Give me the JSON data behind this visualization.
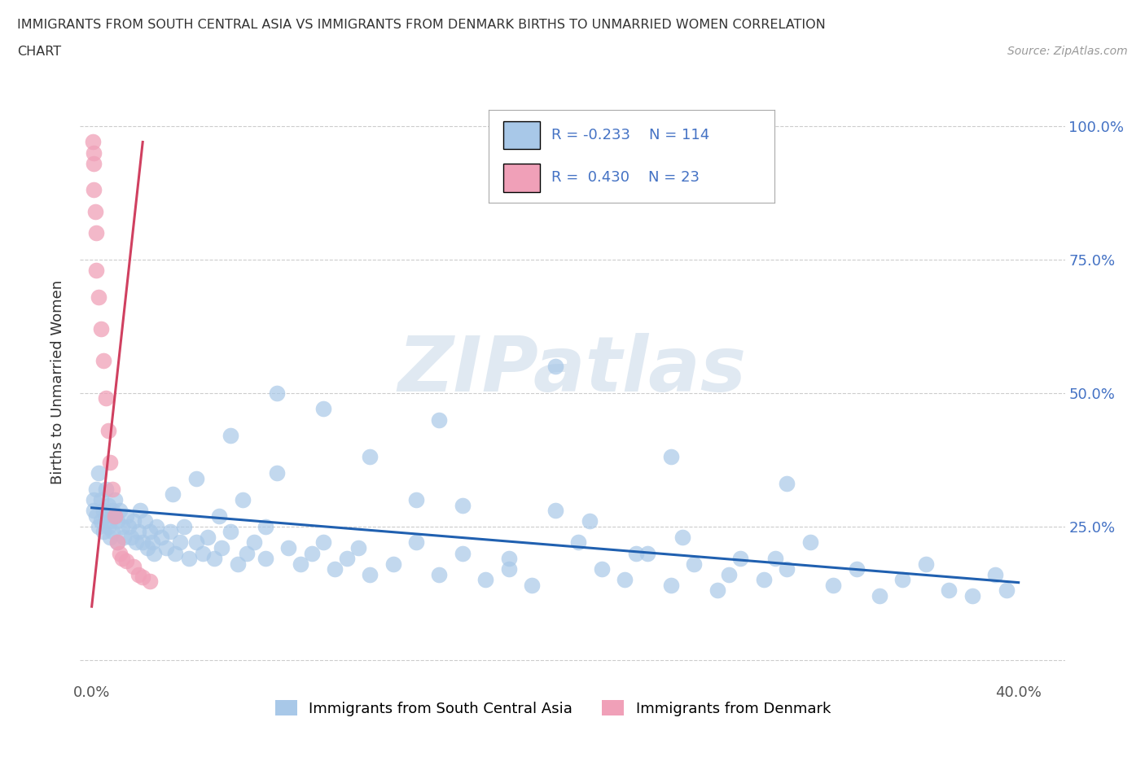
{
  "title_line1": "IMMIGRANTS FROM SOUTH CENTRAL ASIA VS IMMIGRANTS FROM DENMARK BIRTHS TO UNMARRIED WOMEN CORRELATION",
  "title_line2": "CHART",
  "source": "Source: ZipAtlas.com",
  "ylabel": "Births to Unmarried Women",
  "legend_label1": "Immigrants from South Central Asia",
  "legend_label2": "Immigrants from Denmark",
  "R1": -0.233,
  "N1": 114,
  "R2": 0.43,
  "N2": 23,
  "blue_color": "#a8c8e8",
  "pink_color": "#f0a0b8",
  "blue_line_color": "#2060b0",
  "pink_line_color": "#d04060",
  "watermark_text": "ZIPatlas",
  "watermark_color": "#c8d8e8",
  "x_min": 0.0,
  "x_max": 0.4,
  "y_min": 0.0,
  "y_max": 1.05,
  "blue_scatter_x": [
    0.001,
    0.001,
    0.002,
    0.002,
    0.003,
    0.003,
    0.004,
    0.004,
    0.005,
    0.005,
    0.006,
    0.006,
    0.007,
    0.007,
    0.008,
    0.008,
    0.009,
    0.009,
    0.01,
    0.01,
    0.011,
    0.011,
    0.012,
    0.013,
    0.014,
    0.015,
    0.016,
    0.017,
    0.018,
    0.019,
    0.02,
    0.021,
    0.022,
    0.023,
    0.024,
    0.025,
    0.026,
    0.027,
    0.028,
    0.03,
    0.032,
    0.034,
    0.036,
    0.038,
    0.04,
    0.042,
    0.045,
    0.048,
    0.05,
    0.053,
    0.056,
    0.06,
    0.063,
    0.067,
    0.07,
    0.075,
    0.08,
    0.085,
    0.09,
    0.095,
    0.1,
    0.105,
    0.11,
    0.115,
    0.12,
    0.13,
    0.14,
    0.15,
    0.16,
    0.17,
    0.18,
    0.19,
    0.2,
    0.21,
    0.22,
    0.23,
    0.24,
    0.25,
    0.26,
    0.27,
    0.28,
    0.29,
    0.3,
    0.31,
    0.32,
    0.33,
    0.34,
    0.35,
    0.36,
    0.37,
    0.38,
    0.39,
    0.395,
    0.15,
    0.2,
    0.25,
    0.3,
    0.06,
    0.08,
    0.1,
    0.12,
    0.14,
    0.035,
    0.045,
    0.055,
    0.065,
    0.075,
    0.16,
    0.18,
    0.215,
    0.235,
    0.255,
    0.275,
    0.295
  ],
  "blue_scatter_y": [
    0.3,
    0.28,
    0.32,
    0.27,
    0.35,
    0.25,
    0.3,
    0.26,
    0.28,
    0.24,
    0.27,
    0.32,
    0.25,
    0.29,
    0.26,
    0.23,
    0.28,
    0.24,
    0.27,
    0.3,
    0.26,
    0.22,
    0.28,
    0.25,
    0.23,
    0.27,
    0.25,
    0.23,
    0.26,
    0.22,
    0.24,
    0.28,
    0.22,
    0.26,
    0.21,
    0.24,
    0.22,
    0.2,
    0.25,
    0.23,
    0.21,
    0.24,
    0.2,
    0.22,
    0.25,
    0.19,
    0.22,
    0.2,
    0.23,
    0.19,
    0.21,
    0.24,
    0.18,
    0.2,
    0.22,
    0.19,
    0.35,
    0.21,
    0.18,
    0.2,
    0.22,
    0.17,
    0.19,
    0.21,
    0.16,
    0.18,
    0.22,
    0.16,
    0.2,
    0.15,
    0.19,
    0.14,
    0.28,
    0.22,
    0.17,
    0.15,
    0.2,
    0.14,
    0.18,
    0.13,
    0.19,
    0.15,
    0.17,
    0.22,
    0.14,
    0.17,
    0.12,
    0.15,
    0.18,
    0.13,
    0.12,
    0.16,
    0.13,
    0.45,
    0.55,
    0.38,
    0.33,
    0.42,
    0.5,
    0.47,
    0.38,
    0.3,
    0.31,
    0.34,
    0.27,
    0.3,
    0.25,
    0.29,
    0.17,
    0.26,
    0.2,
    0.23,
    0.16,
    0.19
  ],
  "pink_scatter_x": [
    0.0005,
    0.0008,
    0.001,
    0.001,
    0.0015,
    0.002,
    0.002,
    0.003,
    0.004,
    0.005,
    0.006,
    0.007,
    0.008,
    0.009,
    0.01,
    0.011,
    0.012,
    0.013,
    0.015,
    0.018,
    0.02,
    0.022,
    0.025
  ],
  "pink_scatter_y": [
    0.97,
    0.95,
    0.93,
    0.88,
    0.84,
    0.8,
    0.73,
    0.68,
    0.62,
    0.56,
    0.49,
    0.43,
    0.37,
    0.32,
    0.27,
    0.22,
    0.2,
    0.19,
    0.185,
    0.175,
    0.16,
    0.155,
    0.148
  ],
  "blue_line_x": [
    0.0,
    0.4
  ],
  "blue_line_y": [
    0.285,
    0.145
  ],
  "pink_line_x": [
    0.0,
    0.022
  ],
  "pink_line_y": [
    0.1,
    0.97
  ]
}
